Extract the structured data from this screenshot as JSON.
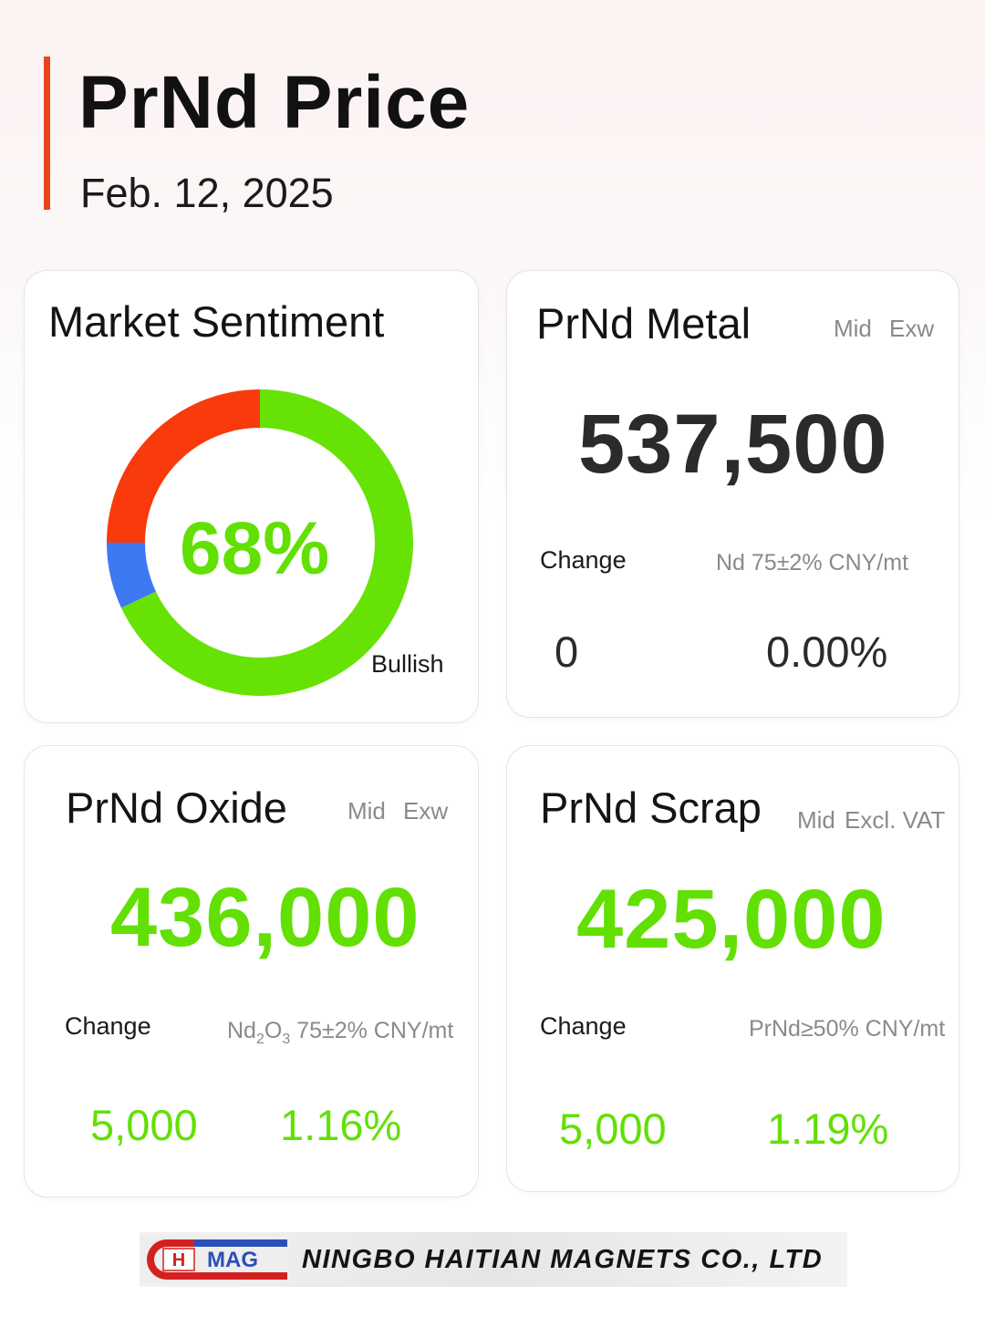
{
  "header": {
    "title": "PrNd Price",
    "date": "Feb. 12, 2025"
  },
  "sentiment": {
    "title": "Market Sentiment",
    "percent_text": "68%",
    "label": "Bullish",
    "chart_data": {
      "type": "pie",
      "segments": [
        {
          "value": 68,
          "color": "#66e304"
        },
        {
          "value": 7,
          "color": "#3d79f2"
        },
        {
          "value": 25,
          "color": "#f83a0c"
        }
      ]
    }
  },
  "metal": {
    "title": "PrNd Metal",
    "tag_mid": "Mid",
    "tag_basis": "Exw",
    "price": "537,500",
    "change_label": "Change",
    "spec_text": "Nd 75±2% CNY/mt",
    "change_abs": "0",
    "change_pct": "0.00%",
    "price_color": "#2b2b2b",
    "change_color": "#2b2b2b"
  },
  "oxide": {
    "title": "PrNd Oxide",
    "tag_mid": "Mid",
    "tag_basis": "Exw",
    "price": "436,000",
    "change_label": "Change",
    "spec_prefix": "Nd",
    "spec_sub1": "2",
    "spec_mid": "O",
    "spec_sub2": "3",
    "spec_suffix": " 75±2% CNY/mt",
    "change_abs": "5,000",
    "change_pct": "1.16%",
    "price_color": "#62e004"
  },
  "scrap": {
    "title": "PrNd Scrap",
    "tag_mid": "Mid",
    "tag_basis": "Excl. VAT",
    "price": "425,000",
    "change_label": "Change",
    "spec_text": "PrNd≥50% CNY/mt",
    "change_abs": "5,000",
    "change_pct": "1.19%",
    "price_color": "#62e004"
  },
  "footer": {
    "logo_text_h": "H",
    "logo_text_mag": "MAG",
    "company": "NINGBO HAITIAN MAGNETS CO., LTD"
  }
}
